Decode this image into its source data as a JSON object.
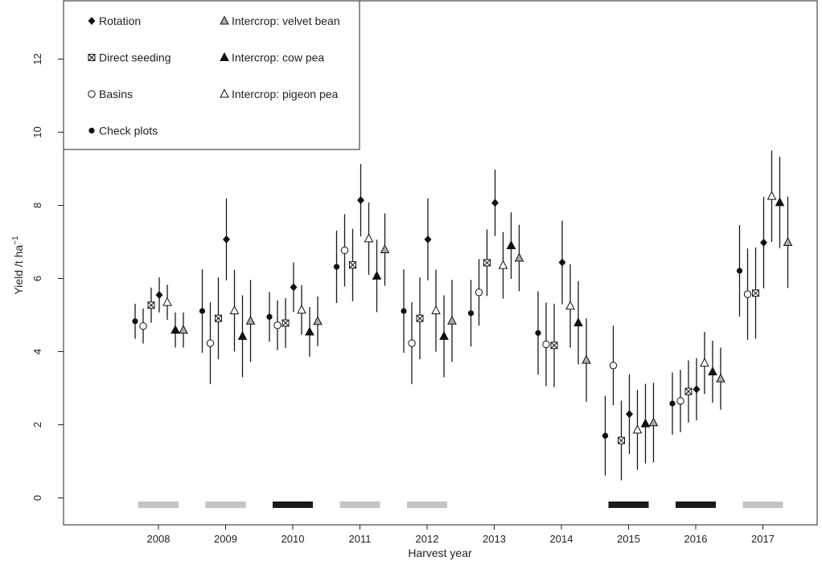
{
  "chart_data": {
    "type": "scatter",
    "xlabel": "Harvest year",
    "ylabel": "Yield /t ha",
    "ylabel_superscript": "−1",
    "ylim": [
      0,
      13
    ],
    "yticks": [
      0,
      2,
      4,
      6,
      8,
      10,
      12
    ],
    "categories": [
      "2008",
      "2009",
      "2010",
      "2011",
      "2012",
      "2013",
      "2014",
      "2015",
      "2016",
      "2017"
    ],
    "series": [
      {
        "name": "Check plots",
        "marker": "dot",
        "values": [
          4.83,
          5.11,
          4.95,
          6.32,
          5.11,
          5.05,
          4.51,
          1.7,
          2.58,
          6.21
        ],
        "lower": [
          4.35,
          3.97,
          4.27,
          5.33,
          3.97,
          4.14,
          3.37,
          0.61,
          1.73,
          4.96
        ],
        "upper": [
          5.31,
          6.25,
          5.63,
          7.31,
          6.25,
          5.96,
          5.65,
          2.79,
          3.43,
          7.46
        ]
      },
      {
        "name": "Basins",
        "marker": "circle",
        "values": [
          4.7,
          4.23,
          4.72,
          6.77,
          4.23,
          5.62,
          4.2,
          3.62,
          2.65,
          5.57
        ],
        "lower": [
          4.22,
          3.11,
          4.04,
          5.78,
          3.11,
          4.71,
          3.06,
          2.53,
          1.8,
          4.32
        ],
        "upper": [
          5.18,
          5.35,
          5.4,
          7.76,
          5.35,
          6.53,
          5.34,
          4.71,
          3.5,
          6.82
        ]
      },
      {
        "name": "Direct seeding",
        "marker": "boxx",
        "values": [
          5.27,
          4.91,
          4.78,
          6.37,
          4.91,
          6.43,
          4.17,
          1.57,
          2.91,
          5.6
        ],
        "lower": [
          4.79,
          3.79,
          4.1,
          5.38,
          3.79,
          5.52,
          3.03,
          0.48,
          2.06,
          4.35
        ],
        "upper": [
          5.75,
          6.03,
          5.46,
          7.36,
          6.03,
          7.34,
          5.31,
          2.66,
          3.76,
          6.85
        ]
      },
      {
        "name": "Rotation",
        "marker": "diamond",
        "values": [
          5.55,
          7.07,
          5.76,
          8.14,
          7.07,
          8.07,
          6.44,
          2.29,
          2.97,
          6.98
        ],
        "lower": [
          5.07,
          5.95,
          5.08,
          7.15,
          5.95,
          7.16,
          5.3,
          1.2,
          2.12,
          5.73
        ],
        "upper": [
          6.03,
          8.19,
          6.44,
          9.13,
          8.19,
          8.98,
          7.58,
          3.38,
          3.82,
          8.23
        ]
      },
      {
        "name": "Intercrop: pigeon pea",
        "marker": "tri-open",
        "values": [
          5.35,
          5.12,
          5.14,
          7.09,
          5.12,
          6.36,
          5.25,
          1.86,
          3.69,
          8.25
        ],
        "lower": [
          4.87,
          4.0,
          4.46,
          6.1,
          4.0,
          5.45,
          4.11,
          0.77,
          2.84,
          7.0
        ],
        "upper": [
          5.83,
          6.24,
          5.82,
          8.08,
          6.24,
          7.27,
          6.39,
          2.95,
          4.54,
          9.5
        ]
      },
      {
        "name": "Intercrop: cow pea",
        "marker": "tri-filled",
        "values": [
          4.59,
          4.42,
          4.54,
          6.07,
          4.42,
          6.9,
          4.79,
          2.03,
          3.45,
          8.08
        ],
        "lower": [
          4.11,
          3.3,
          3.86,
          5.08,
          3.3,
          5.99,
          3.65,
          0.94,
          2.6,
          6.83
        ],
        "upper": [
          5.07,
          5.54,
          5.22,
          7.06,
          5.54,
          7.81,
          5.93,
          3.12,
          4.3,
          9.33
        ]
      },
      {
        "name": "Intercrop: velvet bean",
        "marker": "tri-gray",
        "values": [
          4.59,
          4.84,
          4.83,
          6.79,
          4.84,
          6.56,
          3.77,
          2.06,
          3.26,
          6.99
        ],
        "lower": [
          4.11,
          3.72,
          4.15,
          5.8,
          3.72,
          5.65,
          2.63,
          0.97,
          2.41,
          5.74
        ],
        "upper": [
          5.07,
          5.96,
          5.51,
          7.78,
          5.96,
          7.47,
          4.91,
          3.15,
          4.11,
          8.24
        ]
      }
    ],
    "year_bars": [
      {
        "year": "2008",
        "shade": "light"
      },
      {
        "year": "2009",
        "shade": "light"
      },
      {
        "year": "2010",
        "shade": "dark"
      },
      {
        "year": "2011",
        "shade": "light"
      },
      {
        "year": "2012",
        "shade": "light"
      },
      {
        "year": "2015",
        "shade": "dark"
      },
      {
        "year": "2016",
        "shade": "dark"
      },
      {
        "year": "2017",
        "shade": "light"
      }
    ],
    "colors": {
      "light": "#c4c4c4",
      "dark": "#1a1a1a",
      "gray_fill": "#aaaaaa",
      "axis": "#222222"
    },
    "legend": {
      "placement": "top-left",
      "entries": [
        {
          "label": "Rotation",
          "marker": "diamond"
        },
        {
          "label": "Direct seeding",
          "marker": "boxx"
        },
        {
          "label": "Basins",
          "marker": "circle"
        },
        {
          "label": "Check plots",
          "marker": "dot"
        },
        {
          "label": "Intercrop: velvet bean",
          "marker": "tri-gray"
        },
        {
          "label": "Intercrop: cow pea",
          "marker": "tri-filled"
        },
        {
          "label": "Intercrop: pigeon pea",
          "marker": "tri-open"
        }
      ]
    }
  }
}
